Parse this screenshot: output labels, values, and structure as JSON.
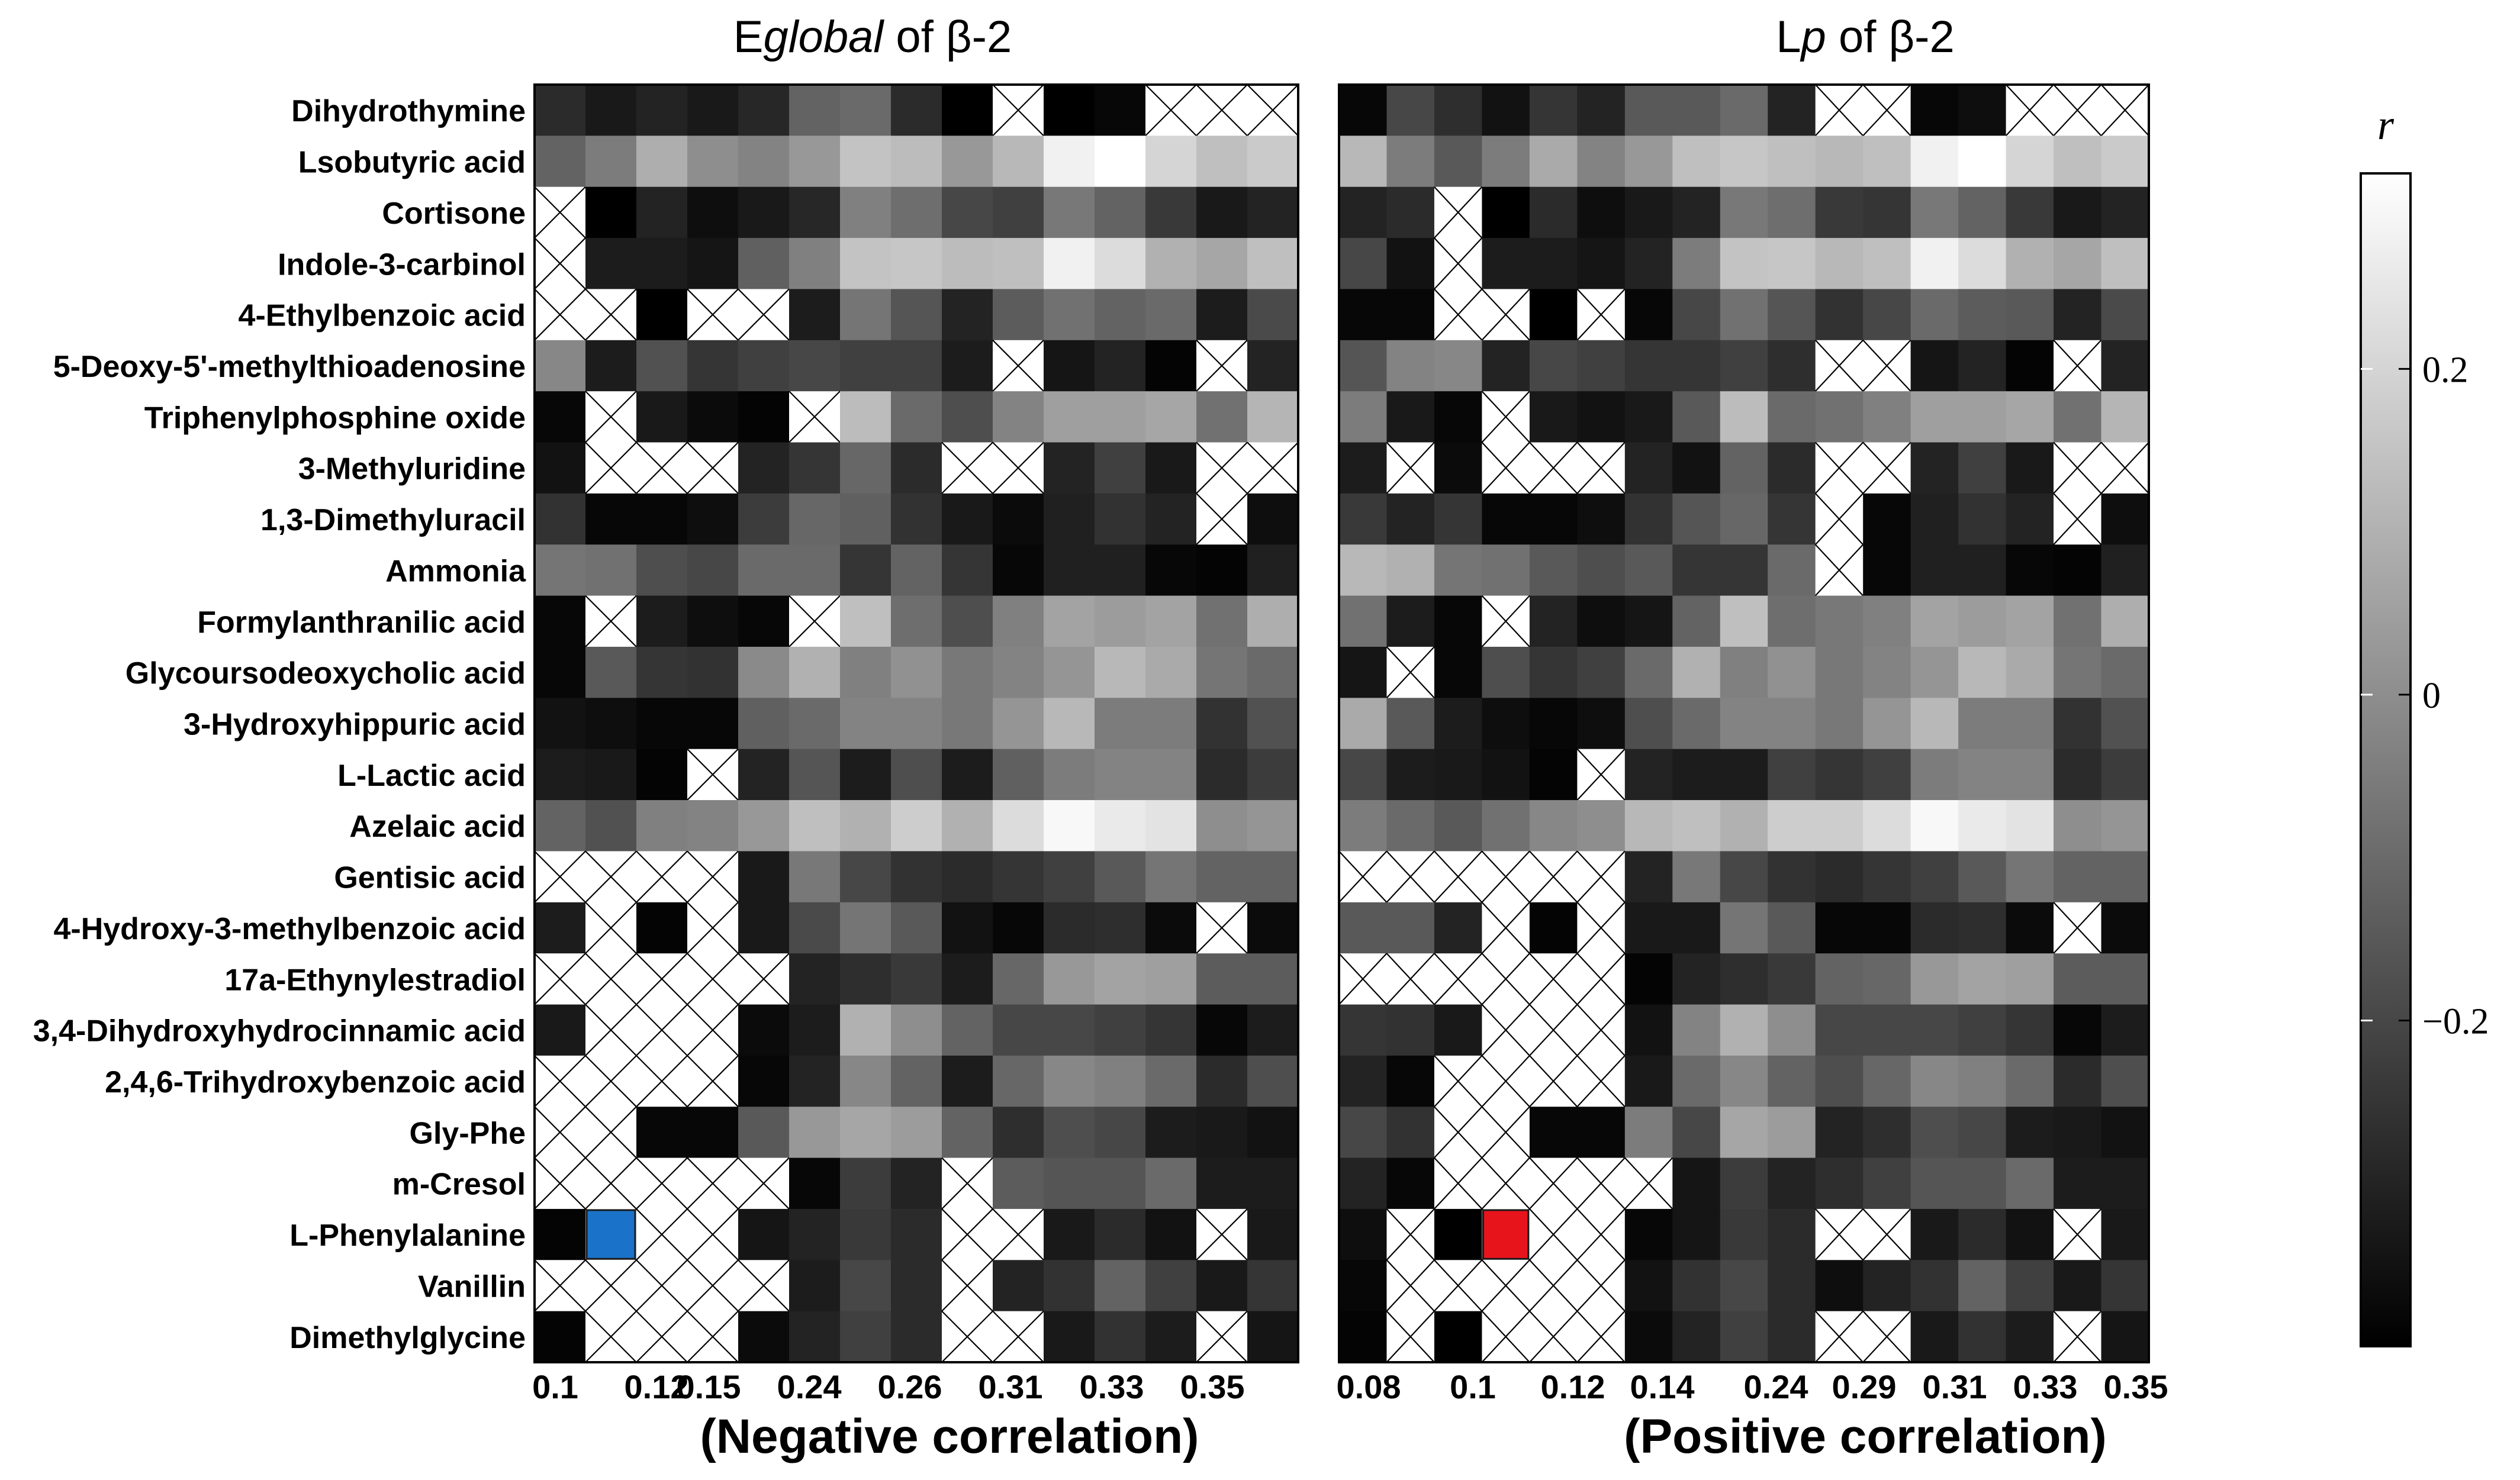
{
  "chart_data": [
    {
      "type": "heatmap",
      "title_parts": {
        "pre": "E",
        "italic": "global",
        "post": " of β-2"
      },
      "title": "Eglobal of β-2",
      "xlabel": "(Negative correlation)",
      "x_tick_labels": [
        "0.1",
        "0.12",
        "0.15",
        "0.24",
        "0.26",
        "0.31",
        "0.33",
        "0.35"
      ],
      "rows": [
        "Dihydrothymine",
        "Lsobutyric acid",
        "Cortisone",
        "Indole-3-carbinol",
        "4-Ethylbenzoic acid",
        "5-Deoxy-5'-methylthioadenosine",
        "Triphenylphosphine oxide",
        "3-Methyluridine",
        "1,3-Dimethyluracil",
        "Ammonia",
        "Formylanthranilic acid",
        "Glycoursodeoxycholic acid",
        "3-Hydroxyhippuric acid",
        "L-Lactic acid",
        "Azelaic acid",
        "Gentisic acid",
        "4-Hydroxy-3-methylbenzoic acid",
        "17a-Ethynylestradiol",
        "3,4-Dihydroxyhydrocinnamic acid",
        "2,4,6-Trihydroxybenzoic acid",
        "Gly-Phe",
        "m-Cresol",
        "L-Phenylalanine",
        "Vanillin",
        "Dimethylglycine"
      ],
      "n_cols": 15,
      "values": [
        [
          -0.28,
          -0.33,
          -0.3,
          -0.33,
          -0.29,
          -0.12,
          -0.1,
          -0.28,
          -0.4,
          null,
          -0.4,
          -0.38,
          null,
          null,
          null
        ],
        [
          -0.12,
          -0.05,
          0.09,
          0.0,
          -0.03,
          0.03,
          0.15,
          0.13,
          0.03,
          0.12,
          0.28,
          0.32,
          0.2,
          0.14,
          0.17
        ],
        [
          null,
          -0.4,
          -0.3,
          -0.36,
          -0.33,
          -0.29,
          -0.04,
          -0.09,
          -0.2,
          -0.22,
          -0.06,
          -0.12,
          -0.24,
          -0.33,
          -0.3
        ],
        [
          null,
          -0.32,
          -0.32,
          -0.34,
          -0.13,
          -0.04,
          0.15,
          0.16,
          0.13,
          0.14,
          0.28,
          0.22,
          0.1,
          0.07,
          0.14
        ],
        [
          null,
          null,
          -0.4,
          null,
          null,
          -0.32,
          -0.07,
          -0.16,
          -0.3,
          -0.14,
          -0.08,
          -0.12,
          -0.1,
          -0.32,
          -0.19
        ],
        [
          -0.02,
          -0.32,
          -0.17,
          -0.25,
          -0.22,
          -0.2,
          -0.22,
          -0.22,
          -0.32,
          null,
          -0.34,
          -0.3,
          -0.39,
          null,
          -0.3
        ],
        [
          -0.38,
          null,
          -0.33,
          -0.37,
          -0.39,
          null,
          0.13,
          -0.1,
          -0.18,
          -0.03,
          0.05,
          0.05,
          0.07,
          -0.08,
          0.11
        ],
        [
          -0.35,
          null,
          null,
          null,
          -0.3,
          -0.25,
          -0.11,
          -0.28,
          null,
          null,
          -0.3,
          -0.22,
          -0.33,
          null,
          null
        ],
        [
          -0.26,
          -0.38,
          -0.38,
          -0.36,
          -0.23,
          -0.11,
          -0.13,
          -0.26,
          -0.33,
          -0.37,
          -0.31,
          -0.26,
          -0.3,
          null,
          -0.36
        ],
        [
          -0.07,
          -0.08,
          -0.18,
          -0.2,
          -0.1,
          -0.1,
          -0.25,
          -0.12,
          -0.25,
          -0.38,
          -0.31,
          -0.31,
          -0.38,
          -0.39,
          -0.31
        ],
        [
          -0.38,
          null,
          -0.32,
          -0.36,
          -0.38,
          null,
          0.14,
          -0.09,
          -0.18,
          -0.04,
          0.06,
          0.04,
          0.06,
          -0.08,
          0.09
        ],
        [
          -0.38,
          -0.15,
          -0.25,
          -0.26,
          -0.01,
          0.1,
          -0.04,
          0.01,
          -0.06,
          -0.03,
          0.02,
          0.12,
          0.08,
          -0.07,
          -0.1
        ],
        [
          -0.35,
          -0.36,
          -0.38,
          -0.38,
          -0.13,
          -0.1,
          -0.03,
          -0.03,
          -0.06,
          0.02,
          0.12,
          -0.05,
          -0.05,
          -0.26,
          -0.17
        ],
        [
          -0.32,
          -0.33,
          -0.39,
          null,
          -0.3,
          -0.16,
          -0.32,
          -0.18,
          -0.32,
          -0.13,
          -0.05,
          -0.03,
          -0.03,
          -0.28,
          -0.23
        ],
        [
          -0.12,
          -0.17,
          -0.04,
          -0.03,
          0.03,
          0.14,
          0.1,
          0.18,
          0.1,
          0.22,
          0.3,
          0.26,
          0.24,
          0.0,
          0.02
        ],
        [
          null,
          null,
          null,
          null,
          -0.33,
          -0.06,
          -0.2,
          -0.26,
          -0.28,
          -0.25,
          -0.22,
          -0.15,
          -0.07,
          -0.12,
          -0.12
        ],
        [
          -0.32,
          null,
          -0.39,
          null,
          -0.33,
          -0.19,
          -0.07,
          -0.15,
          -0.35,
          -0.38,
          -0.28,
          -0.27,
          -0.37,
          null,
          -0.37
        ],
        [
          null,
          null,
          null,
          null,
          null,
          -0.3,
          -0.27,
          -0.24,
          -0.32,
          -0.11,
          0.03,
          0.06,
          0.05,
          -0.14,
          -0.14
        ],
        [
          -0.33,
          null,
          null,
          null,
          -0.37,
          -0.32,
          0.1,
          0.0,
          -0.12,
          -0.2,
          -0.2,
          -0.22,
          -0.25,
          -0.38,
          -0.32
        ],
        [
          null,
          null,
          null,
          null,
          -0.38,
          -0.3,
          -0.02,
          -0.12,
          -0.32,
          -0.11,
          -0.02,
          -0.04,
          -0.1,
          -0.28,
          -0.18
        ],
        [
          null,
          null,
          -0.38,
          -0.38,
          -0.15,
          0.03,
          0.07,
          0.04,
          -0.12,
          -0.27,
          -0.18,
          -0.2,
          -0.32,
          -0.33,
          -0.35
        ],
        [
          null,
          null,
          null,
          null,
          null,
          -0.38,
          -0.23,
          -0.3,
          null,
          -0.14,
          -0.16,
          -0.16,
          -0.1,
          -0.32,
          -0.32
        ],
        [
          -0.39,
          null,
          null,
          null,
          -0.34,
          -0.3,
          -0.24,
          -0.28,
          null,
          null,
          -0.33,
          -0.28,
          -0.35,
          null,
          -0.33
        ],
        [
          null,
          null,
          null,
          null,
          null,
          -0.32,
          -0.2,
          -0.28,
          null,
          -0.3,
          -0.26,
          -0.12,
          -0.22,
          -0.33,
          -0.25
        ],
        [
          -0.39,
          null,
          null,
          null,
          -0.37,
          -0.3,
          -0.22,
          -0.28,
          null,
          null,
          -0.33,
          -0.26,
          -0.32,
          null,
          -0.34
        ]
      ],
      "highlight": {
        "row": 22,
        "col": 1,
        "color": "#1a73c8"
      }
    },
    {
      "type": "heatmap",
      "title_parts": {
        "pre": "L",
        "italic": "p",
        "post": " of β-2"
      },
      "title": "Lp of β-2",
      "xlabel": "(Positive correlation)",
      "x_tick_labels": [
        "0.08",
        "0.1",
        "0.12",
        "0.14",
        "0.24",
        "0.29",
        "0.31",
        "0.33",
        "0.35"
      ],
      "rows": [
        "Dihydrothymine",
        "Lsobutyric acid",
        "Cortisone",
        "Indole-3-carbinol",
        "4-Ethylbenzoic acid",
        "5-Deoxy-5'-methylthioadenosine",
        "Triphenylphosphine oxide",
        "3-Methyluridine",
        "1,3-Dimethyluracil",
        "Ammonia",
        "Formylanthranilic acid",
        "Glycoursodeoxycholic acid",
        "3-Hydroxyhippuric acid",
        "L-Lactic acid",
        "Azelaic acid",
        "Gentisic acid",
        "4-Hydroxy-3-methylbenzoic acid",
        "17a-Ethynylestradiol",
        "3,4-Dihydroxyhydrocinnamic acid",
        "2,4,6-Trihydroxybenzoic acid",
        "Gly-Phe",
        "m-Cresol",
        "L-Phenylalanine",
        "Vanillin",
        "Dimethylglycine"
      ],
      "n_cols": 17,
      "values": [
        [
          -0.38,
          -0.2,
          -0.27,
          -0.35,
          -0.25,
          -0.3,
          -0.15,
          -0.15,
          -0.1,
          -0.3,
          null,
          null,
          -0.38,
          -0.36,
          null,
          null,
          null
        ],
        [
          0.12,
          -0.05,
          -0.15,
          -0.05,
          0.08,
          -0.03,
          0.03,
          0.14,
          0.16,
          0.14,
          0.12,
          0.14,
          0.28,
          0.32,
          0.2,
          0.14,
          0.17
        ],
        [
          -0.3,
          -0.28,
          null,
          -0.4,
          -0.28,
          -0.36,
          -0.33,
          -0.3,
          -0.06,
          -0.09,
          -0.24,
          -0.25,
          -0.06,
          -0.12,
          -0.24,
          -0.33,
          -0.3
        ],
        [
          -0.2,
          -0.35,
          null,
          -0.32,
          -0.32,
          -0.34,
          -0.3,
          -0.05,
          0.15,
          0.16,
          0.12,
          0.14,
          0.28,
          0.22,
          0.1,
          0.07,
          0.14
        ],
        [
          -0.38,
          -0.38,
          null,
          null,
          -0.4,
          null,
          -0.38,
          -0.2,
          -0.08,
          -0.16,
          -0.26,
          -0.2,
          -0.1,
          -0.14,
          -0.15,
          -0.3,
          -0.19
        ],
        [
          -0.16,
          -0.03,
          -0.02,
          -0.3,
          -0.2,
          -0.22,
          -0.25,
          -0.25,
          -0.22,
          -0.27,
          null,
          null,
          -0.34,
          -0.3,
          -0.39,
          null,
          -0.3
        ],
        [
          -0.05,
          -0.33,
          -0.38,
          null,
          -0.33,
          -0.35,
          -0.33,
          -0.15,
          0.13,
          -0.1,
          -0.08,
          -0.04,
          0.05,
          0.05,
          0.07,
          -0.08,
          0.11
        ],
        [
          -0.32,
          null,
          -0.37,
          null,
          null,
          null,
          -0.3,
          -0.35,
          -0.12,
          -0.28,
          null,
          null,
          -0.3,
          -0.22,
          -0.33,
          null,
          null
        ],
        [
          -0.24,
          -0.3,
          -0.25,
          -0.38,
          -0.38,
          -0.36,
          -0.26,
          -0.16,
          -0.11,
          -0.25,
          null,
          -0.38,
          -0.31,
          -0.26,
          -0.3,
          null,
          -0.36
        ],
        [
          0.12,
          0.1,
          -0.07,
          -0.08,
          -0.15,
          -0.18,
          -0.15,
          -0.25,
          -0.25,
          -0.1,
          null,
          -0.38,
          -0.31,
          -0.31,
          -0.38,
          -0.39,
          -0.31
        ],
        [
          -0.08,
          -0.32,
          -0.38,
          null,
          -0.3,
          -0.36,
          -0.34,
          -0.12,
          0.14,
          -0.09,
          -0.06,
          -0.04,
          0.06,
          0.04,
          0.06,
          -0.08,
          0.09
        ],
        [
          -0.34,
          null,
          -0.38,
          -0.18,
          -0.25,
          -0.22,
          -0.1,
          0.1,
          -0.04,
          0.01,
          -0.06,
          -0.03,
          0.02,
          0.12,
          0.08,
          -0.07,
          -0.1
        ],
        [
          0.08,
          -0.15,
          -0.32,
          -0.36,
          -0.38,
          -0.36,
          -0.18,
          -0.1,
          -0.03,
          -0.03,
          -0.06,
          0.02,
          0.12,
          -0.05,
          -0.05,
          -0.26,
          -0.17
        ],
        [
          -0.2,
          -0.32,
          -0.33,
          -0.35,
          -0.39,
          null,
          -0.3,
          -0.32,
          -0.32,
          -0.22,
          -0.25,
          -0.22,
          -0.05,
          -0.03,
          -0.03,
          -0.28,
          -0.23
        ],
        [
          -0.05,
          -0.1,
          -0.15,
          -0.08,
          -0.02,
          0.0,
          0.12,
          0.14,
          0.1,
          0.18,
          0.18,
          0.22,
          0.3,
          0.26,
          0.24,
          0.0,
          0.02
        ],
        [
          null,
          null,
          null,
          null,
          null,
          null,
          -0.3,
          -0.06,
          -0.2,
          -0.26,
          -0.28,
          -0.25,
          -0.22,
          -0.15,
          -0.07,
          -0.12,
          -0.12
        ],
        [
          -0.15,
          -0.15,
          -0.3,
          null,
          -0.39,
          null,
          -0.33,
          -0.33,
          -0.07,
          -0.15,
          -0.38,
          -0.38,
          -0.28,
          -0.27,
          -0.37,
          null,
          -0.37
        ],
        [
          null,
          null,
          null,
          null,
          null,
          null,
          -0.39,
          -0.3,
          -0.27,
          -0.24,
          -0.12,
          -0.11,
          0.03,
          0.06,
          0.05,
          -0.14,
          -0.14
        ],
        [
          -0.25,
          -0.26,
          -0.33,
          null,
          null,
          null,
          -0.35,
          -0.03,
          0.1,
          0.0,
          -0.2,
          -0.2,
          -0.2,
          -0.22,
          -0.25,
          -0.38,
          -0.32
        ],
        [
          -0.3,
          -0.38,
          null,
          null,
          null,
          null,
          -0.33,
          -0.1,
          -0.02,
          -0.12,
          -0.18,
          -0.11,
          -0.02,
          -0.04,
          -0.1,
          -0.28,
          -0.18
        ],
        [
          -0.2,
          -0.26,
          null,
          null,
          -0.38,
          -0.38,
          -0.05,
          -0.2,
          0.07,
          0.04,
          -0.3,
          -0.27,
          -0.18,
          -0.2,
          -0.32,
          -0.33,
          -0.35
        ],
        [
          -0.3,
          -0.38,
          null,
          null,
          null,
          null,
          null,
          -0.34,
          -0.23,
          -0.3,
          -0.27,
          -0.22,
          -0.16,
          -0.16,
          -0.1,
          -0.32,
          -0.32
        ],
        [
          -0.36,
          null,
          -0.4,
          null,
          null,
          null,
          -0.38,
          -0.34,
          -0.24,
          -0.28,
          null,
          null,
          -0.33,
          -0.28,
          -0.35,
          null,
          -0.33
        ],
        [
          -0.38,
          null,
          null,
          null,
          null,
          null,
          -0.35,
          -0.26,
          -0.2,
          -0.28,
          -0.36,
          -0.3,
          -0.26,
          -0.12,
          -0.22,
          -0.33,
          -0.25
        ],
        [
          -0.39,
          null,
          -0.4,
          null,
          null,
          null,
          -0.37,
          -0.3,
          -0.22,
          -0.28,
          null,
          null,
          -0.33,
          -0.26,
          -0.32,
          null,
          -0.34
        ]
      ],
      "highlight": {
        "row": 22,
        "col": 3,
        "color": "#e8141c"
      }
    }
  ],
  "colorbar": {
    "label": "r",
    "min": -0.4,
    "max": 0.32,
    "ticks": [
      {
        "value": 0.2,
        "label": "0.2"
      },
      {
        "value": 0,
        "label": "0"
      },
      {
        "value": -0.2,
        "label": "−0.2"
      }
    ]
  }
}
